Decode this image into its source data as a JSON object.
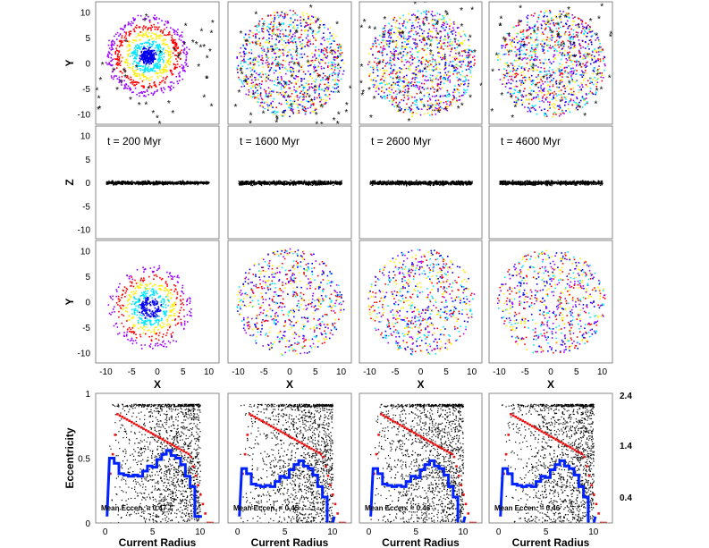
{
  "chart_data": {
    "type": "scatter",
    "title": "",
    "columns": [
      {
        "time_label": "t =  200  Myr",
        "mean_eccentricity_label": "Mean Eccen. = 0.47",
        "mean_eccentricity": 0.47,
        "snapshot": "t=200"
      },
      {
        "time_label": "t =  1600  Myr",
        "mean_eccentricity_label": "Mean Eccen. = 0.45",
        "mean_eccentricity": 0.45,
        "snapshot": "t=1600"
      },
      {
        "time_label": "t =  2600  Myr",
        "mean_eccentricity_label": "Mean Eccen. = 0.46",
        "mean_eccentricity": 0.46,
        "snapshot": "t=2600"
      },
      {
        "time_label": "t =  4600  Myr",
        "mean_eccentricity_label": "Mean Eccen. = 0.46",
        "mean_eccentricity": 0.46,
        "snapshot": "t=4600"
      }
    ],
    "rows": [
      {
        "kind": "xy_with_field",
        "ylabel": "Y",
        "xlim": [
          -12,
          12
        ],
        "ylim": [
          -12,
          12
        ],
        "yticks": [
          10,
          5,
          0,
          -5,
          -10
        ]
      },
      {
        "kind": "xz",
        "ylabel": "Z",
        "xlim": [
          -12,
          12
        ],
        "ylim": [
          -12,
          12
        ],
        "yticks": [
          10,
          5,
          0,
          -5,
          -10
        ],
        "disk_half_thickness": 0.6,
        "disk_radius": 10
      },
      {
        "kind": "xy",
        "ylabel": "Y",
        "xlabel": "X",
        "xlim": [
          -12,
          12
        ],
        "ylim": [
          -12,
          12
        ],
        "xticks": [
          -10,
          -5,
          0,
          5,
          10
        ],
        "yticks": [
          10,
          5,
          0,
          -5,
          -10
        ]
      },
      {
        "kind": "eccentricity",
        "ylabel": "Eccentricity",
        "xlabel": "Current Radius",
        "xlim": [
          -1,
          12
        ],
        "ylim": [
          0,
          1
        ],
        "xticks": [
          0,
          5,
          10
        ],
        "yticks": [
          "1",
          "0.5",
          "0"
        ],
        "right_ticks": [
          "2.4",
          "1.4",
          "0.4"
        ],
        "right_tick_values": [
          2.4,
          1.4,
          0.4
        ]
      }
    ],
    "series": [
      {
        "name": "stars (colored by formation radius)",
        "colors": [
          "#0000ee",
          "#00e6ff",
          "#ffee00",
          "#ff0000",
          "#9900ff"
        ]
      },
      {
        "name": "field stars",
        "marker": "asterisk",
        "color": "#000000"
      },
      {
        "name": "mean eccentricity vs radius (blue histogram)",
        "color": "#0022ff",
        "x": [
          0.7,
          1.2,
          1.7,
          2.2,
          2.7,
          3.2,
          3.7,
          4.2,
          4.7,
          5.2,
          5.7,
          6.2,
          6.7,
          7.2,
          7.7,
          8.2,
          8.7,
          9.2,
          9.7
        ],
        "values": [
          0.5,
          0.46,
          0.38,
          0.37,
          0.36,
          0.37,
          0.36,
          0.4,
          0.44,
          0.43,
          0.49,
          0.53,
          0.56,
          0.52,
          0.5,
          0.45,
          0.36,
          0.28,
          0.05
        ]
      },
      {
        "name": "cumulative profile (red points)",
        "color": "#ee1111"
      }
    ]
  }
}
